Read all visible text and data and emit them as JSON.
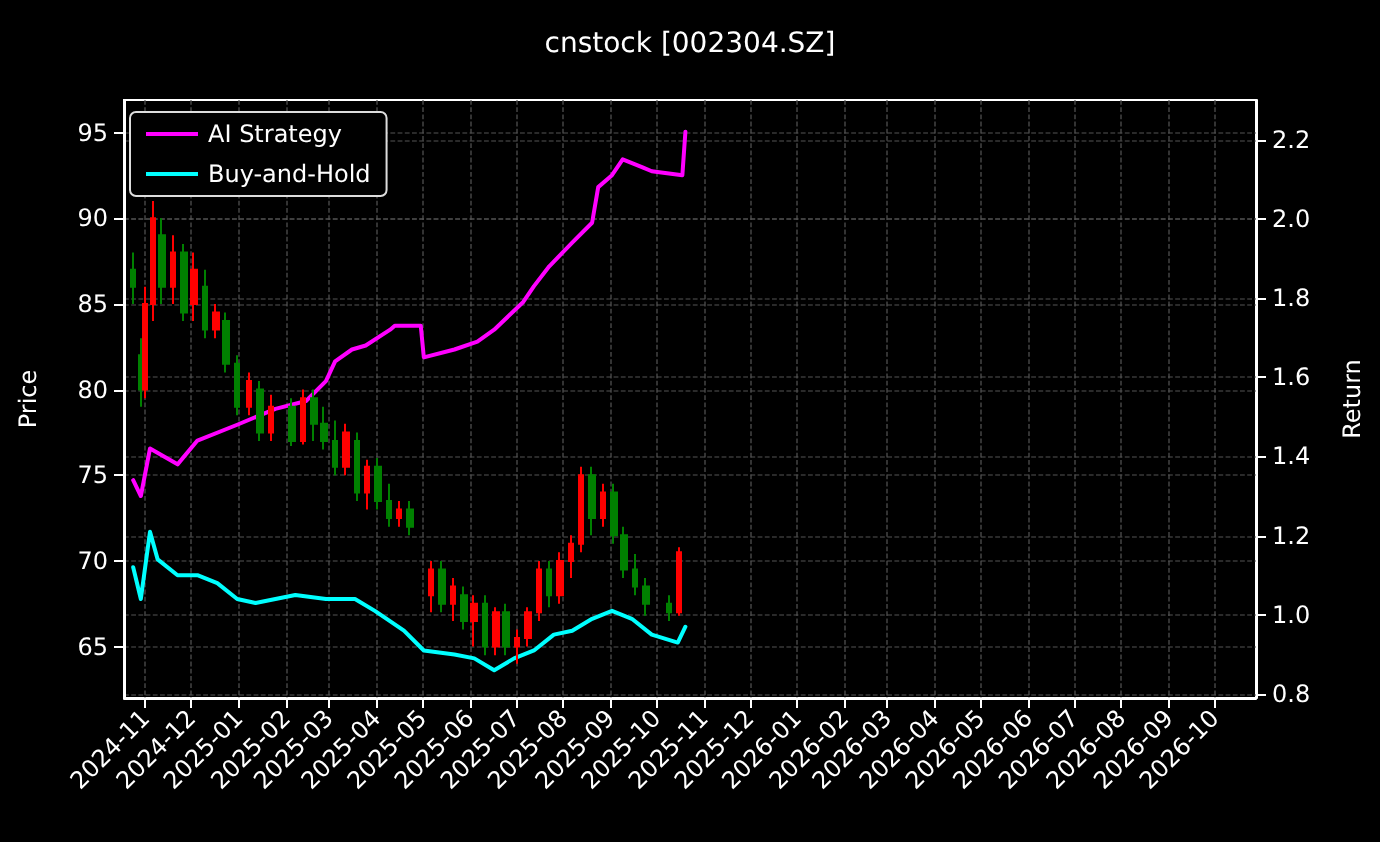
{
  "chart_data": {
    "type": "candlestick",
    "title": "cnstock [002304.SZ]",
    "ylabel": "Price",
    "y2label": "Return",
    "x": [
      "2024-10-24",
      "2024-10-29",
      "2024-11-01",
      "2024-11-06",
      "2024-11-12",
      "2024-11-19",
      "2024-11-26",
      "2024-12-03",
      "2024-12-10",
      "2024-12-17",
      "2024-12-24",
      "2024-12-31",
      "2025-01-08",
      "2025-01-15",
      "2025-01-22",
      "2025-02-05",
      "2025-02-12",
      "2025-02-19",
      "2025-02-26",
      "2025-03-05",
      "2025-03-12",
      "2025-03-19",
      "2025-03-26",
      "2025-04-02",
      "2025-04-09",
      "2025-04-16",
      "2025-04-23",
      "2025-05-07",
      "2025-05-14",
      "2025-05-21",
      "2025-05-28",
      "2025-06-04",
      "2025-06-11",
      "2025-06-18",
      "2025-06-25",
      "2025-07-02",
      "2025-07-09",
      "2025-07-16",
      "2025-07-23",
      "2025-07-30",
      "2025-08-06",
      "2025-08-13",
      "2025-08-20",
      "2025-08-27",
      "2025-09-03",
      "2025-09-10",
      "2025-09-17",
      "2025-09-24",
      "2025-10-09",
      "2025-10-16"
    ],
    "ohlc": [
      [
        87,
        88,
        85,
        86
      ],
      [
        82,
        83,
        79,
        80
      ],
      [
        80,
        86,
        79.5,
        85
      ],
      [
        85,
        91,
        84,
        90
      ],
      [
        89,
        90,
        85,
        86
      ],
      [
        86,
        89,
        85,
        88
      ],
      [
        88,
        88.5,
        84,
        84.5
      ],
      [
        85,
        88,
        84,
        87
      ],
      [
        86,
        87,
        83,
        83.5
      ],
      [
        83.5,
        85,
        83,
        84.5
      ],
      [
        84,
        84.5,
        81,
        81.5
      ],
      [
        81.5,
        82,
        78.5,
        79
      ],
      [
        79,
        81,
        78.5,
        80.5
      ],
      [
        80,
        80.5,
        77,
        77.5
      ],
      [
        77.5,
        79.7,
        77,
        79
      ],
      [
        79,
        79.5,
        76.7,
        77
      ],
      [
        77,
        80,
        76.8,
        79.5
      ],
      [
        79.5,
        80,
        77,
        78
      ],
      [
        78,
        79,
        76.5,
        77
      ],
      [
        77,
        78.2,
        75,
        75.5
      ],
      [
        75.5,
        78,
        75,
        77.5
      ],
      [
        77,
        77.5,
        73.5,
        74
      ],
      [
        74,
        75.9,
        73,
        75.5
      ],
      [
        75.5,
        76,
        73,
        73.5
      ],
      [
        73.5,
        74.5,
        72,
        72.5
      ],
      [
        72.5,
        73.5,
        72,
        73
      ],
      [
        73,
        73.5,
        71.5,
        72
      ],
      [
        68,
        70,
        67,
        69.5
      ],
      [
        69.5,
        70,
        67,
        67.5
      ],
      [
        67.5,
        69,
        66.5,
        68.5
      ],
      [
        68,
        68.5,
        66,
        66.5
      ],
      [
        66.5,
        68,
        65,
        67.5
      ],
      [
        67.5,
        68,
        64.5,
        65
      ],
      [
        65,
        67.3,
        64.5,
        67
      ],
      [
        67,
        67.5,
        64.5,
        65
      ],
      [
        65,
        66,
        64,
        65.5
      ],
      [
        65.5,
        67.3,
        65,
        67
      ],
      [
        67,
        70,
        66.5,
        69.5
      ],
      [
        69.5,
        70,
        67.3,
        68
      ],
      [
        68,
        70.5,
        67.5,
        70
      ],
      [
        70,
        71.5,
        69,
        71
      ],
      [
        71,
        75.5,
        70.5,
        75
      ],
      [
        75,
        75.5,
        71.5,
        72.5
      ],
      [
        72.5,
        74.5,
        72,
        74
      ],
      [
        74,
        74.5,
        71,
        71.5
      ],
      [
        71.5,
        72,
        69,
        69.5
      ],
      [
        69.5,
        70.4,
        68,
        68.5
      ],
      [
        68.5,
        69,
        66.8,
        67.5
      ],
      [
        67.5,
        68,
        66.5,
        67
      ],
      [
        67,
        70.8,
        66.8,
        70.5
      ]
    ],
    "series": [
      {
        "name": "AI Strategy",
        "type": "line",
        "axis": "y2",
        "color": "#ff00ff",
        "x": [
          "2024-10-24",
          "2024-10-29",
          "2024-11-04",
          "2024-11-22",
          "2024-12-05",
          "2024-12-31",
          "2025-01-25",
          "2025-02-14",
          "2025-02-27",
          "2025-03-05",
          "2025-03-16",
          "2025-03-25",
          "2025-04-10",
          "2025-04-13",
          "2025-04-30",
          "2025-05-02",
          "2025-05-22",
          "2025-06-06",
          "2025-06-17",
          "2025-07-06",
          "2025-07-13",
          "2025-07-23",
          "2025-08-07",
          "2025-08-20",
          "2025-08-24",
          "2025-09-02",
          "2025-09-09",
          "2025-09-22",
          "2025-09-28",
          "2025-10-18",
          "2025-10-20"
        ],
        "values": [
          1.34,
          1.3,
          1.42,
          1.38,
          1.44,
          1.48,
          1.52,
          1.54,
          1.59,
          1.64,
          1.67,
          1.68,
          1.72,
          1.73,
          1.73,
          1.65,
          1.67,
          1.69,
          1.72,
          1.79,
          1.83,
          1.88,
          1.94,
          1.99,
          2.08,
          2.11,
          2.15,
          2.13,
          2.12,
          2.11,
          2.22
        ]
      },
      {
        "name": "Buy-and-Hold",
        "type": "line",
        "axis": "y2",
        "color": "#00ffff",
        "x": [
          "2024-10-24",
          "2024-10-29",
          "2024-11-04",
          "2024-11-09",
          "2024-11-22",
          "2024-12-05",
          "2024-12-18",
          "2024-12-31",
          "2025-01-12",
          "2025-02-07",
          "2025-02-27",
          "2025-03-18",
          "2025-03-31",
          "2025-04-19",
          "2025-05-02",
          "2025-05-22",
          "2025-06-04",
          "2025-06-17",
          "2025-06-30",
          "2025-07-13",
          "2025-07-26",
          "2025-08-07",
          "2025-08-20",
          "2025-09-02",
          "2025-09-15",
          "2025-09-28",
          "2025-10-15",
          "2025-10-20"
        ],
        "values": [
          1.12,
          1.04,
          1.21,
          1.14,
          1.1,
          1.1,
          1.08,
          1.04,
          1.03,
          1.05,
          1.04,
          1.04,
          1.01,
          0.96,
          0.91,
          0.9,
          0.89,
          0.86,
          0.89,
          0.91,
          0.95,
          0.96,
          0.99,
          1.01,
          0.99,
          0.95,
          0.93,
          0.97
        ]
      }
    ],
    "xlim": [
      "2024-10-18",
      "2026-10-28"
    ],
    "xticks": [
      "2024-11",
      "2024-12",
      "2025-01",
      "2025-02",
      "2025-03",
      "2025-04",
      "2025-05",
      "2025-06",
      "2025-07",
      "2025-08",
      "2025-09",
      "2025-10",
      "2025-11",
      "2025-12",
      "2026-01",
      "2026-02",
      "2026-03",
      "2026-04",
      "2026-05",
      "2026-06",
      "2026-07",
      "2026-08",
      "2026-09",
      "2026-10"
    ],
    "ylim": [
      62,
      96.9
    ],
    "yticks": [
      65,
      70,
      75,
      80,
      85,
      90,
      95
    ],
    "y2lim": [
      0.79,
      2.3
    ],
    "y2ticks": [
      0.8,
      {
        "value": 1,
        "label": "1.0"
      },
      1.2,
      1.4,
      1.6,
      1.8,
      {
        "value": 2,
        "label": "2.0"
      },
      2.2
    ],
    "grid": true,
    "legend": "top left",
    "line_style": "solid",
    "marker": "none"
  }
}
